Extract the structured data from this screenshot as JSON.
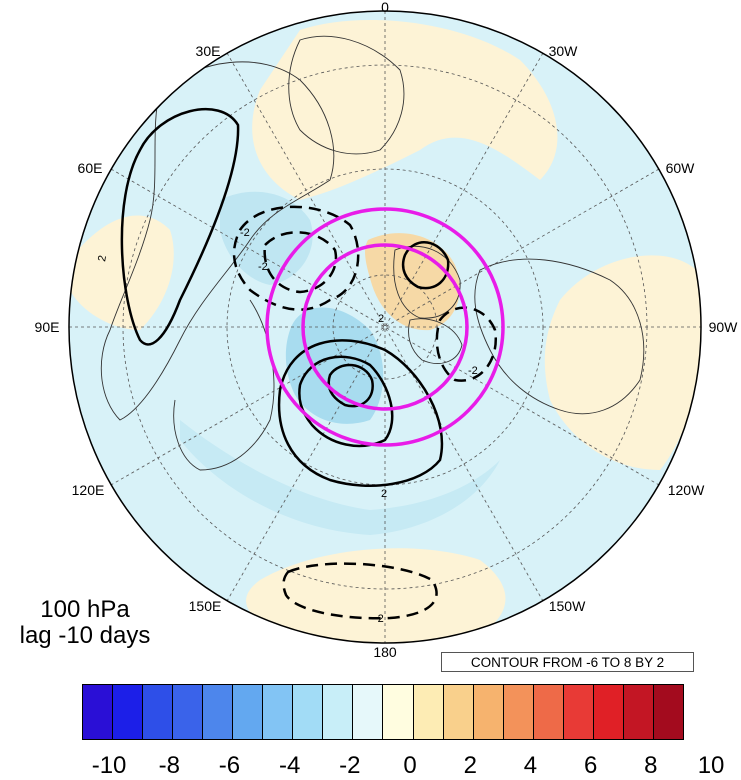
{
  "panel": {
    "level": "100 hPa",
    "lag": "lag -10 days"
  },
  "contour_info": "CONTOUR FROM -6 TO 8 BY 2",
  "longitude_labels": {
    "lon_0": "0",
    "lon_30w": "30W",
    "lon_60w": "60W",
    "lon_90w": "90W",
    "lon_120w": "120W",
    "lon_150w": "150W",
    "lon_180": "180",
    "lon_150e": "150E",
    "lon_120e": "120E",
    "lon_90e": "90E",
    "lon_60e": "60E",
    "lon_30e": "30E"
  },
  "contour_labels": [
    "2",
    "-2",
    "2",
    "-2",
    "2",
    "-2",
    "-2"
  ],
  "colorbar": {
    "colors": [
      "#2a0fd6",
      "#1c1fe8",
      "#2e4fe8",
      "#3a63ea",
      "#4d86ec",
      "#63a8f0",
      "#82c4f4",
      "#a2dcf6",
      "#c8eef8",
      "#e6f8fa",
      "#fffde0",
      "#fdecb4",
      "#f9d08c",
      "#f6b36e",
      "#f3925a",
      "#ee6a48",
      "#e83a36",
      "#e02026",
      "#c31624",
      "#a30b1e"
    ],
    "tick_labels": [
      "-10",
      "-8",
      "-6",
      "-4",
      "-2",
      "0",
      "2",
      "4",
      "6",
      "8",
      "10"
    ]
  },
  "colors": {
    "background_field": "#d8f2f8",
    "positive_shading": "#fdf3d6",
    "strong_positive": "#f6d9a6",
    "negative_shading": "#a8dcef",
    "magenta_circles": "#e81ce8"
  }
}
